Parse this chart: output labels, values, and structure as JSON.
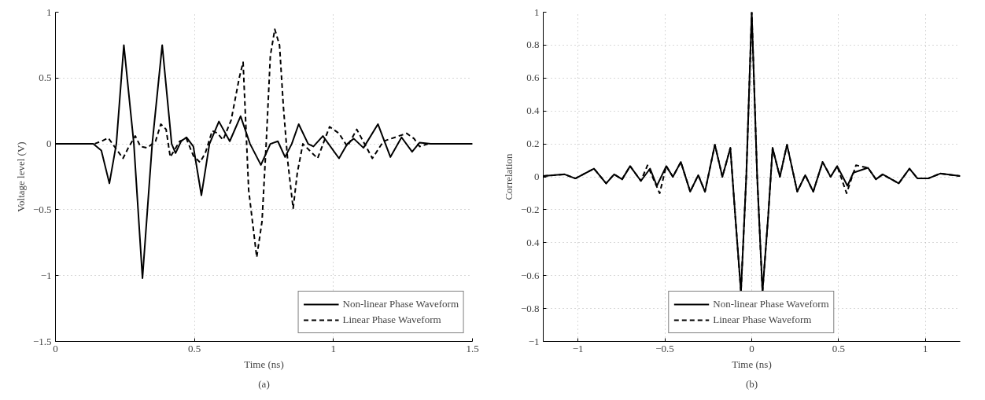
{
  "chart_data": [
    {
      "type": "line",
      "xlabel": "Time (ns)",
      "ylabel": "Voltage level (V)",
      "xlim": [
        0,
        1.5
      ],
      "ylim": [
        -1.5,
        1
      ],
      "xticks": [
        0,
        0.5,
        1,
        1.5
      ],
      "yticks": [
        -1.5,
        -1,
        -0.5,
        0,
        0.5,
        1
      ],
      "grid": true,
      "legend": "bottom right",
      "annotations": [
        "(a)"
      ],
      "series": [
        {
          "name": "Non-linear Phase Waveform",
          "color": "#000000",
          "line_style": "solid",
          "x": [
            0,
            0.136,
            0.165,
            0.194,
            0.219,
            0.246,
            0.282,
            0.313,
            0.348,
            0.384,
            0.418,
            0.432,
            0.452,
            0.471,
            0.496,
            0.525,
            0.554,
            0.588,
            0.627,
            0.666,
            0.7,
            0.739,
            0.773,
            0.8,
            0.826,
            0.85,
            0.875,
            0.909,
            0.928,
            0.962,
            1.02,
            1.05,
            1.073,
            1.108,
            1.16,
            1.205,
            1.245,
            1.283,
            1.31,
            1.35,
            1.5
          ],
          "values": [
            0,
            0,
            -0.05,
            -0.3,
            0,
            0.75,
            0,
            -1.02,
            0,
            0.75,
            0,
            -0.07,
            0.02,
            0.05,
            -0.02,
            -0.39,
            0,
            0.17,
            0.02,
            0.21,
            0,
            -0.16,
            0,
            0.02,
            -0.1,
            0,
            0.15,
            0,
            -0.02,
            0.06,
            -0.11,
            0,
            0.04,
            -0.03,
            0.15,
            -0.1,
            0.05,
            -0.06,
            0.01,
            0,
            0
          ]
        },
        {
          "name": "Linear Phase Waveform",
          "color": "#000000",
          "line_style": "dashed",
          "x": [
            0,
            0.14,
            0.165,
            0.19,
            0.243,
            0.262,
            0.287,
            0.306,
            0.33,
            0.36,
            0.379,
            0.398,
            0.413,
            0.447,
            0.471,
            0.496,
            0.52,
            0.539,
            0.564,
            0.583,
            0.603,
            0.632,
            0.661,
            0.675,
            0.695,
            0.724,
            0.743,
            0.758,
            0.773,
            0.789,
            0.806,
            0.82,
            0.836,
            0.855,
            0.87,
            0.89,
            0.914,
            0.943,
            0.986,
            1.02,
            1.05,
            1.084,
            1.14,
            1.18,
            1.263,
            1.29,
            1.31,
            1.34,
            1.5
          ],
          "values": [
            0,
            0,
            0.02,
            0.045,
            -0.11,
            -0.03,
            0.06,
            -0.02,
            -0.03,
            0.02,
            0.15,
            0.11,
            -0.1,
            0.02,
            0.04,
            -0.09,
            -0.14,
            -0.07,
            0.1,
            0.08,
            0.03,
            0.18,
            0.5,
            0.62,
            -0.35,
            -0.86,
            -0.59,
            0,
            0.67,
            0.87,
            0.75,
            0.28,
            -0.14,
            -0.49,
            -0.22,
            0,
            -0.05,
            -0.11,
            0.13,
            0.08,
            -0.02,
            0.11,
            -0.11,
            0.02,
            0.08,
            0.04,
            -0.02,
            0,
            0
          ]
        }
      ]
    },
    {
      "type": "line",
      "xlabel": "Time (ns)",
      "ylabel": "Correlation",
      "xlim": [
        -1.2,
        1.2
      ],
      "ylim": [
        -1,
        1
      ],
      "xticks": [
        -1,
        -0.5,
        0,
        0.5,
        1
      ],
      "yticks": [
        -1,
        -0.8,
        -0.6,
        {
          "value": -0.4,
          "label": "0.4"
        },
        -0.2,
        0,
        0.2,
        0.4,
        0.6,
        0.8,
        1
      ],
      "grid": true,
      "legend": "bottom",
      "annotations": [
        "(b)"
      ],
      "series": [
        {
          "name": "Non-linear Phase Waveform",
          "color": "#000000",
          "line_style": "solid",
          "x": [
            -1.2,
            -1.077,
            -1.015,
            -0.908,
            -0.838,
            -0.792,
            -0.746,
            -0.7,
            -0.638,
            -0.585,
            -0.546,
            -0.492,
            -0.454,
            -0.408,
            -0.354,
            -0.308,
            -0.269,
            -0.212,
            -0.169,
            -0.123,
            -0.095,
            -0.062,
            -0.031,
            0,
            0.031,
            0.062,
            0.095,
            0.12,
            0.162,
            0.203,
            0.262,
            0.308,
            0.354,
            0.408,
            0.454,
            0.492,
            0.551,
            0.585,
            0.669,
            0.715,
            0.754,
            0.846,
            0.908,
            0.954,
            1.015,
            1.085,
            1.2
          ],
          "values": [
            0.005,
            0.015,
            -0.01,
            0.05,
            -0.04,
            0.015,
            -0.015,
            0.065,
            -0.025,
            0.05,
            -0.055,
            0.065,
            0,
            0.09,
            -0.09,
            0.01,
            -0.09,
            0.195,
            0,
            0.175,
            -0.235,
            -0.7,
            0.01,
            1,
            0.01,
            -0.7,
            -0.235,
            0.175,
            0,
            0.195,
            -0.09,
            0.01,
            -0.09,
            0.09,
            0,
            0.065,
            -0.055,
            0.025,
            0.055,
            -0.015,
            0.015,
            -0.04,
            0.05,
            -0.01,
            -0.01,
            0.02,
            0.005
          ]
        },
        {
          "name": "Linear Phase Waveform",
          "color": "#000000",
          "line_style": "dashed",
          "x": [
            -1.2,
            -1.077,
            -1.015,
            -0.908,
            -0.838,
            -0.792,
            -0.746,
            -0.7,
            -0.638,
            -0.6,
            -0.53,
            -0.492,
            -0.454,
            -0.408,
            -0.354,
            -0.308,
            -0.269,
            -0.212,
            -0.169,
            -0.123,
            -0.095,
            -0.062,
            -0.031,
            0,
            0.031,
            0.062,
            0.095,
            0.12,
            0.162,
            0.203,
            0.262,
            0.308,
            0.354,
            0.408,
            0.454,
            0.492,
            0.546,
            0.6,
            0.669,
            0.715,
            0.754,
            0.846,
            0.908,
            0.954,
            1.015,
            1.085,
            1.2
          ],
          "values": [
            0.005,
            0.015,
            -0.01,
            0.05,
            -0.04,
            0.015,
            -0.015,
            0.065,
            -0.025,
            0.07,
            -0.1,
            0.065,
            0,
            0.09,
            -0.09,
            0.01,
            -0.09,
            0.195,
            0,
            0.175,
            -0.235,
            -0.7,
            0.01,
            1,
            0.01,
            -0.7,
            -0.235,
            0.175,
            0,
            0.195,
            -0.09,
            0.01,
            -0.09,
            0.09,
            0,
            0.065,
            -0.1,
            0.07,
            0.055,
            -0.015,
            0.015,
            -0.04,
            0.05,
            -0.01,
            -0.01,
            0.02,
            0.005
          ]
        }
      ]
    }
  ]
}
